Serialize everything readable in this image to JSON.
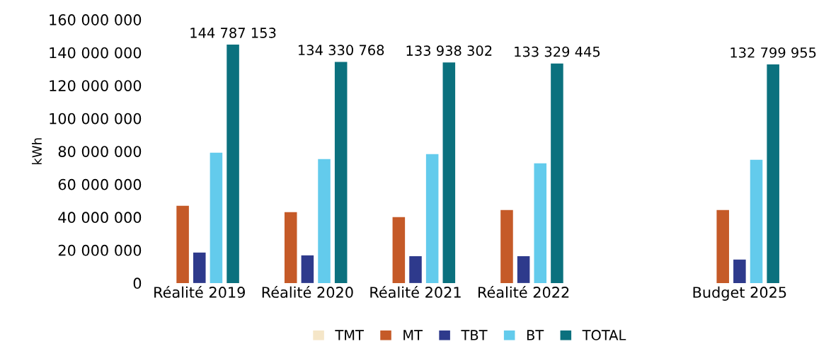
{
  "chart_data": {
    "type": "bar",
    "ylabel": "kWh",
    "categories": [
      "Réalité 2019",
      "Réalité 2020",
      "Réalité 2021",
      "Réalité 2022",
      null,
      "Budget 2025"
    ],
    "series": [
      {
        "name": "TMT",
        "color": "#f5e6c8",
        "values": [
          0,
          0,
          0,
          0,
          null,
          0
        ]
      },
      {
        "name": "MT",
        "color": "#c55a28",
        "values": [
          46900000,
          43000000,
          40000000,
          44300000,
          null,
          44300000
        ]
      },
      {
        "name": "TBT",
        "color": "#2e3a8c",
        "values": [
          18500000,
          16800000,
          16300000,
          16300000,
          null,
          14200000
        ]
      },
      {
        "name": "BT",
        "color": "#63cbec",
        "values": [
          79100000,
          75300000,
          78300000,
          72700000,
          null,
          74800000
        ]
      },
      {
        "name": "TOTAL",
        "color": "#0b717e",
        "values": [
          144787153,
          134330768,
          133938302,
          133329445,
          null,
          132799955
        ],
        "value_labels": [
          "144 787 153",
          "134 330 768",
          "133 938 302",
          "133 329 445",
          null,
          "132 799 955"
        ]
      }
    ],
    "ylim": [
      0,
      160000000
    ],
    "yticks": [
      {
        "value": 0,
        "label": "0"
      },
      {
        "value": 20000000,
        "label": "20 000 000"
      },
      {
        "value": 40000000,
        "label": "40 000 000"
      },
      {
        "value": 60000000,
        "label": "60 000 000"
      },
      {
        "value": 80000000,
        "label": "80 000 000"
      },
      {
        "value": 100000000,
        "label": "100 000 000"
      },
      {
        "value": 120000000,
        "label": "120 000 000"
      },
      {
        "value": 140000000,
        "label": "140 000 000"
      },
      {
        "value": 160000000,
        "label": "160 000 000"
      }
    ],
    "grid": false,
    "legend": "bottom"
  }
}
